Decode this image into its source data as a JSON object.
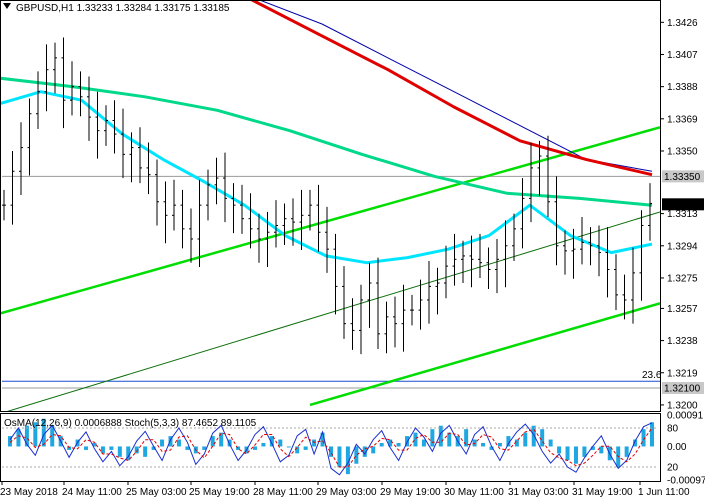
{
  "chart_data": {
    "type": "line",
    "title": "GBPUSD,H1  1.33233 1.33284 1.33175 1.33185",
    "symbol": "GBPUSD",
    "timeframe": "H1",
    "ohlc": {
      "open": 1.33233,
      "high": 1.33284,
      "low": 1.33175,
      "close": 1.33185
    },
    "price_ticks": [
      1.3426,
      1.3407,
      1.3388,
      1.3369,
      1.335,
      1.3313,
      1.3294,
      1.3275,
      1.3257,
      1.3238,
      1.3219,
      1.32
    ],
    "price_ylim": [
      1.3197,
      1.3438
    ],
    "price_badges": [
      {
        "label": "1.33350",
        "value": 1.3335,
        "color": "#c8c8c8",
        "text_color": "#ffffff"
      },
      {
        "label": "1.33185",
        "value": 1.33185,
        "color": "#000000",
        "text_color": "#ffffff"
      },
      {
        "label": "1.32100",
        "value": 1.321,
        "color": "#c8c8c8",
        "text_color": "#ffffff"
      }
    ],
    "x_labels": [
      "23 May 2018",
      "24 May 11:00",
      "25 May 03:00",
      "25 May 19:00",
      "28 May 11:00",
      "29 May 03:00",
      "29 May 19:00",
      "30 May 11:00",
      "31 May 03:00",
      "31 May 19:00",
      "1 Jun 11:00"
    ],
    "fib_label": "23.6",
    "fib_level": 1.3214,
    "hlines": [
      1.3335,
      1.3214,
      1.321
    ],
    "price_series": [
      1.3318,
      1.3338,
      1.3352,
      1.3372,
      1.3385,
      1.3398,
      1.3405,
      1.338,
      1.3388,
      1.3382,
      1.337,
      1.3362,
      1.3368,
      1.336,
      1.3348,
      1.3352,
      1.334,
      1.3336,
      1.332,
      1.3312,
      1.3318,
      1.3304,
      1.3298,
      1.3318,
      1.333,
      1.3334,
      1.3322,
      1.3318,
      1.331,
      1.3304,
      1.3298,
      1.3302,
      1.3306,
      1.331,
      1.3308,
      1.3312,
      1.3318,
      1.3302,
      1.3292,
      1.327,
      1.3248,
      1.3244,
      1.3262,
      1.3272,
      1.3242,
      1.3252,
      1.3248,
      1.3256,
      1.3256,
      1.3262,
      1.327,
      1.3272,
      1.3282,
      1.3286,
      1.3288,
      1.3286,
      1.3284,
      1.328,
      1.3286,
      1.3294,
      1.3304,
      1.3322,
      1.334,
      1.3347,
      1.332,
      1.3294,
      1.3291,
      1.3292,
      1.3296,
      1.3294,
      1.329,
      1.328,
      1.3265,
      1.3262,
      1.3278,
      1.3306,
      1.3319
    ],
    "series": [
      {
        "name": "",
        "color": "#0000aa",
        "values": [
          1.346,
          1.344,
          1.3425,
          1.3405,
          1.3385,
          1.3365,
          1.3345,
          1.3338
        ]
      },
      {
        "name": "",
        "color": "#e00000",
        "values": [
          1.3458,
          1.3438,
          1.3418,
          1.3398,
          1.3376,
          1.3356,
          1.3345,
          1.3336
        ]
      },
      {
        "name": "",
        "color": "#00d88a",
        "values": [
          1.3393,
          1.3388,
          1.3382,
          1.3374,
          1.3362,
          1.3348,
          1.3335,
          1.3325,
          1.3322,
          1.3318
        ]
      },
      {
        "name": "",
        "color": "#00e5ff",
        "values": [
          1.3378,
          1.3385,
          1.338,
          1.336,
          1.3345,
          1.3332,
          1.3318,
          1.33,
          1.3288,
          1.3284,
          1.3287,
          1.3292,
          1.33,
          1.3318,
          1.33,
          1.329,
          1.3295
        ]
      }
    ],
    "channel": {
      "color": "#00dd00",
      "upper": [
        1.3254,
        1.3364
      ],
      "middle": [
        1.3196,
        1.3314
      ],
      "lower": [
        1.32,
        1.326
      ]
    },
    "indicator": {
      "label": "OsMA(12,26,9) 0.0006888  Stoch(5,3,3) 87.4652 89.1105",
      "osma_name": "OsMA(12,26,9)",
      "osma_value": "0.0006888",
      "stoch_name": "Stoch(5,3,3)",
      "stoch_main": "87.4652",
      "stoch_signal": "89.1105",
      "ticks": [
        "0.00091",
        "80",
        "0.00",
        "20",
        "-0.00097"
      ],
      "osma_range": [
        -0.00097,
        0.00091
      ],
      "stoch_range": [
        0,
        100
      ],
      "osma": [
        0.0003,
        0.0005,
        0.0006,
        0.0007,
        0.0008,
        0.0006,
        0.0003,
        -0.0001,
        0.0002,
        -0.0001,
        0.0001,
        -0.0002,
        -0.0001,
        -0.0003,
        -0.0004,
        -0.0002,
        -0.0003,
        -0.0001,
        0.0002,
        0.0003,
        0.0002,
        -0.0001,
        -0.0002,
        -0.0001,
        0.0003,
        0.0004,
        0.0002,
        -0.0001,
        -0.0002,
        -0.0001,
        0.0001,
        0.0003,
        0.0002,
        0.0,
        -0.0002,
        -0.0001,
        0.0002,
        0.0004,
        -0.0003,
        -0.0006,
        -0.0008,
        -0.0005,
        -0.0003,
        -0.0002,
        0.0001,
        0.0002,
        0.0001,
        0.0003,
        0.0004,
        0.0002,
        0.0005,
        0.0006,
        0.0004,
        0.0003,
        0.0005,
        0.0002,
        0.0001,
        -0.0001,
        0.0001,
        0.0003,
        0.0002,
        0.0004,
        0.0006,
        0.0005,
        0.0002,
        -0.0002,
        -0.0004,
        -0.0005,
        -0.0003,
        -0.0001,
        -0.0002,
        -0.0004,
        -0.0006,
        -0.0003,
        0.0002,
        0.0005,
        0.0007
      ],
      "stoch_main_series": [
        62,
        80,
        55,
        38,
        70,
        84,
        60,
        35,
        58,
        74,
        48,
        28,
        44,
        22,
        36,
        60,
        75,
        52,
        30,
        62,
        80,
        58,
        24,
        40,
        72,
        84,
        55,
        30,
        46,
        70,
        82,
        56,
        28,
        38,
        68,
        78,
        40,
        74,
        18,
        8,
        26,
        55,
        40,
        62,
        76,
        50,
        30,
        58,
        80,
        66,
        44,
        72,
        84,
        60,
        40,
        70,
        82,
        52,
        30,
        56,
        74,
        86,
        70,
        44,
        26,
        40,
        20,
        12,
        34,
        52,
        68,
        40,
        18,
        30,
        60,
        82,
        88
      ],
      "stoch_signal_series": [
        58,
        68,
        65,
        50,
        55,
        70,
        68,
        50,
        48,
        62,
        58,
        40,
        40,
        34,
        30,
        44,
        62,
        62,
        44,
        46,
        66,
        68,
        46,
        34,
        52,
        72,
        70,
        48,
        40,
        54,
        70,
        70,
        48,
        36,
        50,
        66,
        58,
        60,
        42,
        20,
        20,
        38,
        48,
        52,
        64,
        62,
        46,
        46,
        64,
        70,
        58,
        58,
        72,
        70,
        54,
        56,
        70,
        66,
        48,
        46,
        60,
        74,
        78,
        60,
        42,
        34,
        30,
        22,
        26,
        38,
        52,
        52,
        36,
        28,
        40,
        62,
        80
      ]
    }
  }
}
